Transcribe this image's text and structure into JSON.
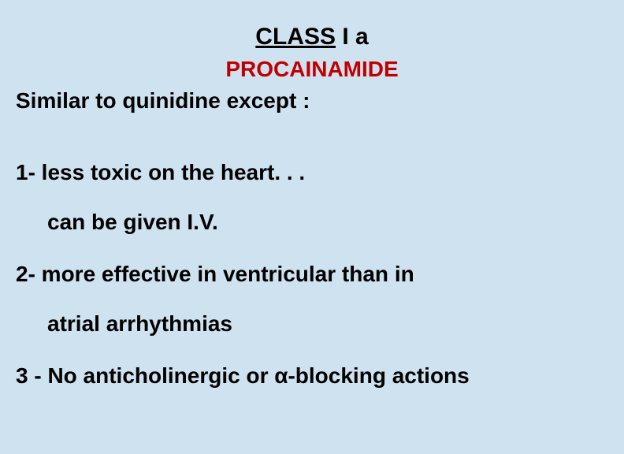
{
  "title_underlined": "CLASS",
  "title_rest": "  I a",
  "subtitle": "PROCAINAMIDE",
  "intro": "Similar to quinidine except :",
  "point1": "1- less toxic on the heart. . .",
  "point1_sub": "can be given I.V.",
  "point2_line1": "2- more effective in ventricular than in",
  "point2_line2": "atrial arrhythmias",
  "point3": "3 - No anticholinergic or α-blocking actions",
  "colors": {
    "background": "#cfe2f0",
    "text": "#000000",
    "subtitle": "#c00000"
  },
  "typography": {
    "font_family": "Arial",
    "title_size": 30,
    "body_size": 28,
    "font_weight": "bold"
  }
}
